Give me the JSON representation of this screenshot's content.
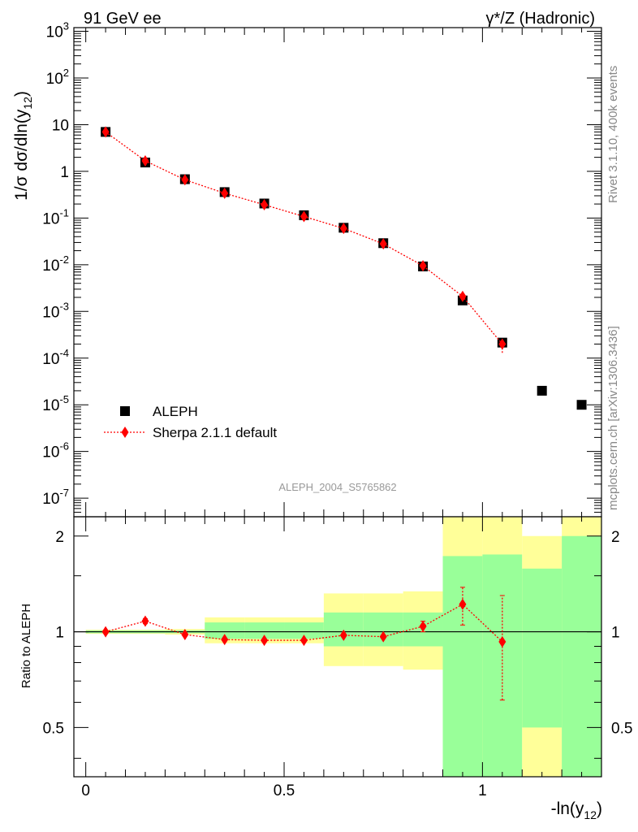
{
  "header": {
    "left": "91 GeV ee",
    "right": "γ*/Z (Hadronic)"
  },
  "side_labels": {
    "rivet": "Rivet 3.1.10,  400k events",
    "mcplots": "mcplots.cern.ch [arXiv:1306.3436]"
  },
  "analysis_id": "ALEPH_2004_S5765862",
  "chart_data": [
    {
      "type": "scatter",
      "panel": "main",
      "yscale": "log",
      "ylabel": "1/σ  dσ/dln(y12)",
      "xlabel": "-ln(y12)",
      "xlim": [
        -0.03,
        1.3
      ],
      "ylim": [
        4e-08,
        1200
      ],
      "yticks": [
        "10^-7",
        "10^-6",
        "10^-5",
        "10^-4",
        "10^-3",
        "10^-2",
        "10^-1",
        "1",
        "10",
        "10^2",
        "10^3"
      ],
      "legend": [
        "ALEPH",
        "Sherpa 2.1.1 default"
      ],
      "legend_position": "lower-left",
      "series": [
        {
          "name": "ALEPH",
          "marker": "square",
          "color": "#000000",
          "x": [
            0.05,
            0.15,
            0.25,
            0.35,
            0.45,
            0.55,
            0.65,
            0.75,
            0.85,
            0.95,
            1.05,
            1.15,
            1.25
          ],
          "values": [
            7.0,
            1.55,
            0.68,
            0.36,
            0.205,
            0.115,
            0.062,
            0.029,
            0.0092,
            0.00172,
            0.000215,
            2e-05,
            1e-05
          ]
        },
        {
          "name": "Sherpa 2.1.1 default",
          "marker": "diamond",
          "line": "dotted",
          "color": "#ff0000",
          "x": [
            0.05,
            0.15,
            0.25,
            0.35,
            0.45,
            0.55,
            0.65,
            0.75,
            0.85,
            0.95,
            1.05
          ],
          "values": [
            7.0,
            1.68,
            0.66,
            0.34,
            0.193,
            0.108,
            0.06,
            0.028,
            0.0095,
            0.0021,
            0.0002
          ],
          "err_low": [
            0,
            0,
            0,
            0,
            0,
            0,
            0,
            0,
            0,
            0,
            7e-05
          ],
          "err_high": [
            0,
            0,
            0,
            0,
            0,
            0,
            0,
            0,
            0,
            0,
            3e-05
          ]
        }
      ]
    },
    {
      "type": "scatter",
      "panel": "ratio",
      "yscale": "log",
      "ylabel": "Ratio to ALEPH",
      "xlabel": "-ln(y12)",
      "xlim": [
        -0.03,
        1.3
      ],
      "ylim": [
        0.35,
        2.3
      ],
      "xticks": [
        "0",
        "0.5",
        "1"
      ],
      "yticks": [
        "0.5",
        "1",
        "2"
      ],
      "bands": [
        {
          "x0": 0.0,
          "x1": 0.1,
          "green": [
            0.99,
            1.01
          ],
          "yellow": [
            0.985,
            1.015
          ]
        },
        {
          "x0": 0.1,
          "x1": 0.2,
          "green": [
            0.99,
            1.01
          ],
          "yellow": [
            0.985,
            1.015
          ]
        },
        {
          "x0": 0.2,
          "x1": 0.3,
          "green": [
            0.99,
            1.01
          ],
          "yellow": [
            0.98,
            1.02
          ]
        },
        {
          "x0": 0.3,
          "x1": 0.4,
          "green": [
            0.95,
            1.07
          ],
          "yellow": [
            0.92,
            1.11
          ]
        },
        {
          "x0": 0.4,
          "x1": 0.5,
          "green": [
            0.95,
            1.07
          ],
          "yellow": [
            0.92,
            1.11
          ]
        },
        {
          "x0": 0.5,
          "x1": 0.6,
          "green": [
            0.95,
            1.07
          ],
          "yellow": [
            0.92,
            1.11
          ]
        },
        {
          "x0": 0.6,
          "x1": 0.7,
          "green": [
            0.9,
            1.15
          ],
          "yellow": [
            0.78,
            1.32
          ]
        },
        {
          "x0": 0.7,
          "x1": 0.8,
          "green": [
            0.9,
            1.15
          ],
          "yellow": [
            0.78,
            1.32
          ]
        },
        {
          "x0": 0.8,
          "x1": 0.9,
          "green": [
            0.9,
            1.15
          ],
          "yellow": [
            0.76,
            1.34
          ]
        },
        {
          "x0": 0.9,
          "x1": 1.0,
          "green": [
            0.35,
            1.73
          ],
          "yellow": [
            0.35,
            2.3
          ]
        },
        {
          "x0": 1.0,
          "x1": 1.1,
          "green": [
            0.35,
            1.75
          ],
          "yellow": [
            0.35,
            2.3
          ]
        },
        {
          "x0": 1.1,
          "x1": 1.2,
          "green": [
            0.5,
            1.58
          ],
          "yellow": [
            0.35,
            2.0
          ]
        },
        {
          "x0": 1.2,
          "x1": 1.3,
          "green": [
            0.35,
            2.0
          ],
          "yellow": [
            0.35,
            2.3
          ]
        }
      ],
      "series": [
        {
          "name": "Sherpa 2.1.1 default",
          "marker": "diamond",
          "line": "dotted",
          "color": "#ff0000",
          "x": [
            0.05,
            0.15,
            0.25,
            0.35,
            0.45,
            0.55,
            0.65,
            0.75,
            0.85,
            0.95,
            1.05
          ],
          "values": [
            1.0,
            1.08,
            0.98,
            0.945,
            0.94,
            0.94,
            0.975,
            0.965,
            1.04,
            1.22,
            0.93
          ],
          "err_low": [
            0,
            0.02,
            0,
            0,
            0,
            0,
            0.01,
            0.01,
            0.04,
            0.17,
            0.32
          ],
          "err_high": [
            0,
            0.02,
            0,
            0,
            0,
            0,
            0.01,
            0.01,
            0.04,
            0.16,
            0.37
          ]
        }
      ]
    }
  ]
}
